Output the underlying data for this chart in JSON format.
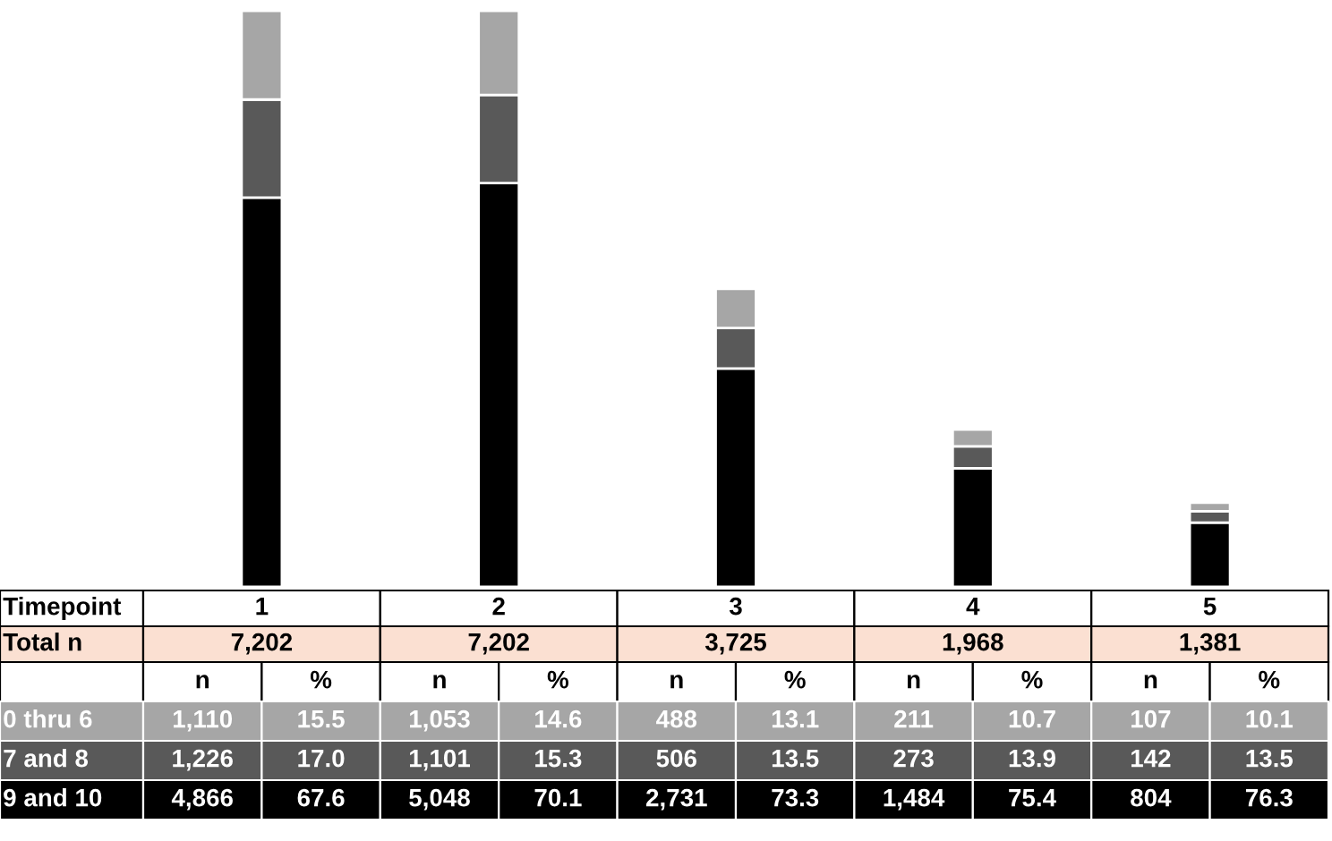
{
  "chart_data": {
    "type": "bar",
    "stacked": true,
    "xlabel": "Timepoint",
    "categories": [
      "1",
      "2",
      "3",
      "4",
      "5"
    ],
    "series": [
      {
        "name": "9 and 10",
        "color": "#000000",
        "values": [
          4866,
          5048,
          2731,
          1484,
          804
        ],
        "value_labels": [
          "4,866",
          "5,048",
          "2,731",
          "1,484",
          "804"
        ]
      },
      {
        "name": "7 and 8",
        "color": "#595959",
        "values": [
          1226,
          1101,
          506,
          273,
          142
        ],
        "value_labels": [
          "1,226",
          "1,101",
          "506",
          "273",
          "142"
        ]
      },
      {
        "name": "0 thru 6",
        "color": "#a6a6a6",
        "values": [
          1110,
          1053,
          488,
          211,
          107
        ],
        "value_labels": [
          "1,110",
          "1,053",
          "488",
          "211",
          "107"
        ]
      }
    ],
    "annotations": [
      "Total n",
      "7,202",
      "7,202",
      "3,725",
      "1,968",
      "1,381",
      "n",
      "%",
      "67.6",
      "70.1",
      "73.3",
      "75.4",
      "76.3",
      "17.0",
      "15.3",
      "13.5",
      "13.9",
      "13.5",
      "15.5",
      "14.6",
      "13.1",
      "10.7",
      "10.1"
    ],
    "legend": "bottom"
  }
}
